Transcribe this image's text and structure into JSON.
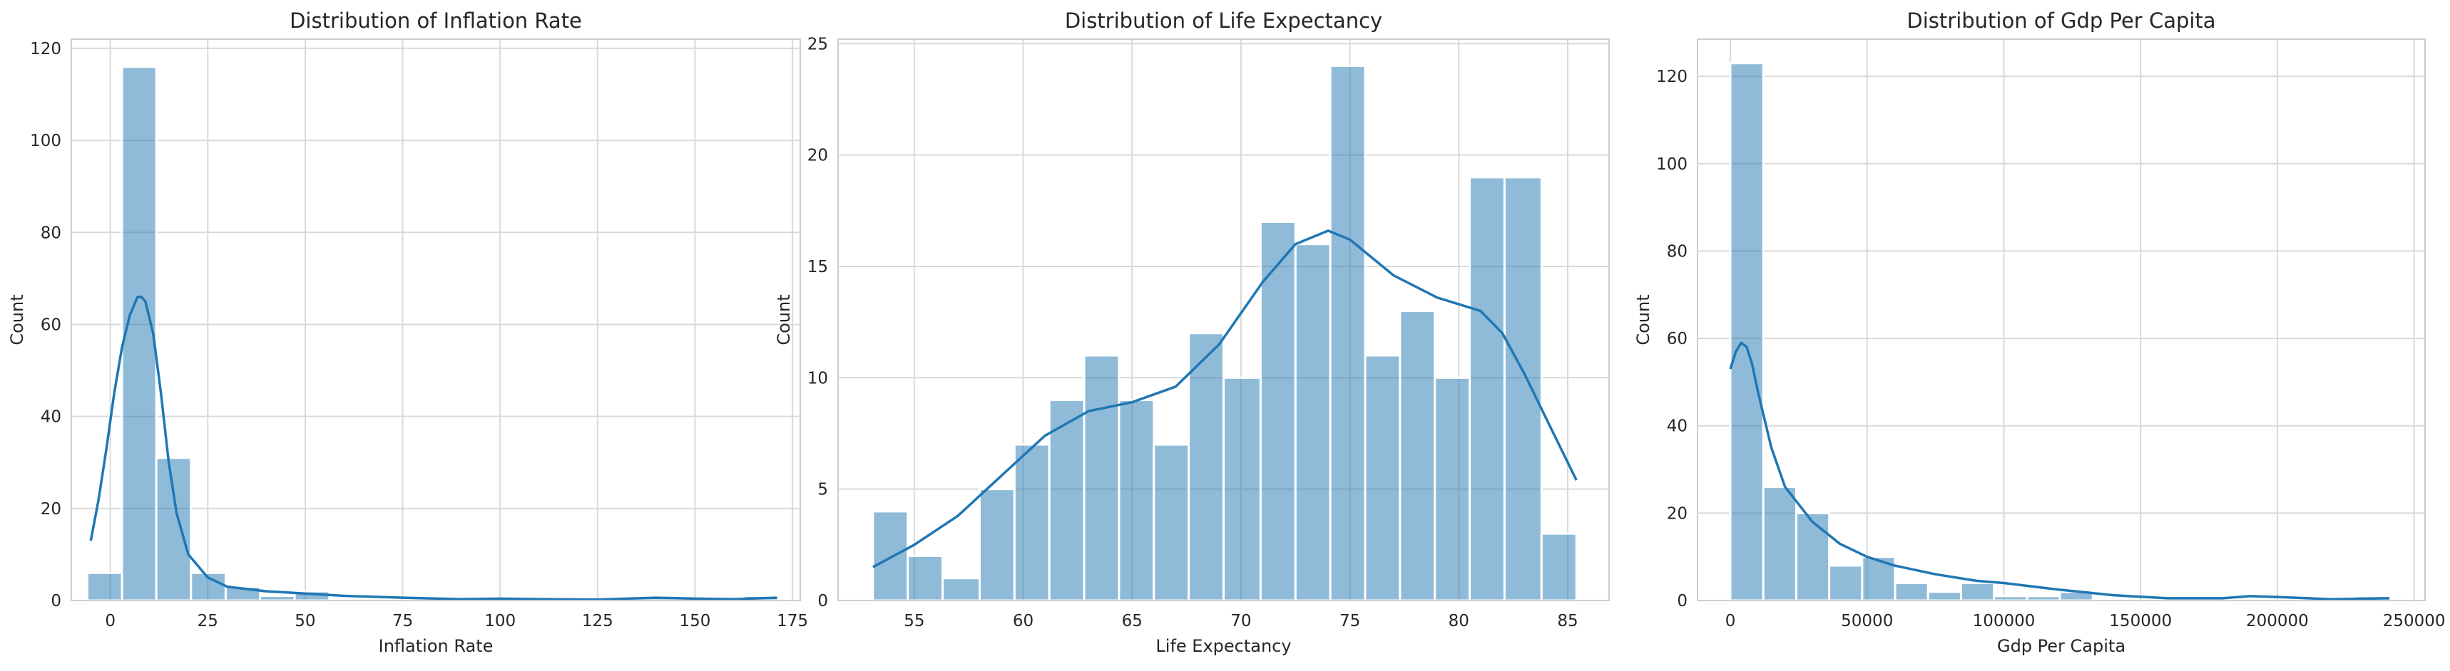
{
  "chart_data": [
    {
      "type": "bar",
      "title": "Distribution of Inflation Rate",
      "xlabel": "Inflation Rate",
      "ylabel": "Count",
      "xlim": [
        -10,
        177
      ],
      "ylim": [
        0,
        122
      ],
      "xticks": [
        0,
        25,
        50,
        75,
        100,
        125,
        150,
        175
      ],
      "yticks": [
        0,
        20,
        40,
        60,
        80,
        100,
        120
      ],
      "bin_edges": [
        -5.9,
        3.0,
        11.8,
        20.7,
        29.6,
        38.4,
        47.3,
        56.2,
        65.0,
        73.9,
        82.7,
        91.6,
        100.5,
        109.3,
        118.2,
        127.1,
        135.9,
        144.8,
        153.7,
        162.5,
        171.4
      ],
      "counts": [
        6,
        116,
        31,
        6,
        3,
        1,
        2,
        0,
        0,
        0,
        0,
        0,
        0,
        0,
        0,
        0,
        1,
        0,
        0,
        1
      ],
      "kde": {
        "x": [
          -5,
          -3,
          -1,
          1,
          3,
          5,
          7,
          8,
          9,
          11,
          13,
          15,
          17,
          20,
          25,
          30,
          40,
          50,
          60,
          75,
          90,
          100,
          110,
          125,
          140,
          150,
          160,
          171
        ],
        "y": [
          13,
          22,
          33,
          45,
          55,
          62,
          66,
          66,
          65,
          58,
          45,
          30,
          19,
          10,
          5,
          3,
          2,
          1.5,
          1,
          0.6,
          0.3,
          0.4,
          0.3,
          0.2,
          0.6,
          0.4,
          0.3,
          0.6
        ]
      },
      "grid": true
    },
    {
      "type": "bar",
      "title": "Distribution of Life Expectancy",
      "xlabel": "Life Expectancy",
      "ylabel": "Count",
      "xlim": [
        51.5,
        86.9
      ],
      "ylim": [
        0,
        25.2
      ],
      "xticks": [
        55,
        60,
        65,
        70,
        75,
        80,
        85
      ],
      "yticks": [
        0,
        5,
        10,
        15,
        20,
        25
      ],
      "bin_edges": [
        53.1,
        54.7,
        56.3,
        58.0,
        59.6,
        61.2,
        62.8,
        64.4,
        66.0,
        67.6,
        69.2,
        70.9,
        72.5,
        74.1,
        75.7,
        77.3,
        78.9,
        80.5,
        82.1,
        83.8,
        85.4
      ],
      "counts": [
        4,
        2,
        1,
        5,
        7,
        9,
        11,
        9,
        7,
        12,
        10,
        17,
        16,
        24,
        11,
        13,
        10,
        19,
        19,
        3
      ],
      "kde": {
        "x": [
          53.1,
          55,
          57,
          59,
          61,
          63,
          65,
          67,
          69,
          71,
          72.5,
          74,
          75,
          77,
          79,
          81,
          82,
          83,
          84,
          85.4
        ],
        "y": [
          1.5,
          2.5,
          3.8,
          5.6,
          7.4,
          8.5,
          8.9,
          9.6,
          11.5,
          14.3,
          16.0,
          16.6,
          16.2,
          14.6,
          13.6,
          13.0,
          12.0,
          10.2,
          8.2,
          5.4
        ]
      },
      "grid": true
    },
    {
      "type": "bar",
      "title": "Distribution of Gdp Per Capita",
      "xlabel": "Gdp Per Capita",
      "ylabel": "Count",
      "xlim": [
        -12000,
        254000
      ],
      "ylim": [
        0,
        128.5
      ],
      "xticks": [
        0,
        50000,
        100000,
        150000,
        200000,
        250000
      ],
      "yticks": [
        0,
        20,
        40,
        60,
        80,
        100,
        120
      ],
      "bin_edges": [
        0,
        12050,
        24100,
        36150,
        48200,
        60250,
        72300,
        84350,
        96400,
        108450,
        120500,
        132550,
        144600,
        156650,
        168700,
        180750,
        192800,
        204850,
        216900,
        228950,
        241000
      ],
      "counts": [
        123,
        26,
        20,
        8,
        10,
        4,
        2,
        4,
        1,
        1,
        2,
        0,
        0,
        0,
        0,
        0,
        0,
        0,
        0,
        1
      ],
      "kde": {
        "x": [
          0,
          2000,
          4000,
          6000,
          8000,
          10000,
          15000,
          20000,
          30000,
          40000,
          50000,
          60000,
          75000,
          90000,
          100000,
          120000,
          140000,
          160000,
          180000,
          190000,
          200000,
          220000,
          241000
        ],
        "y": [
          53,
          57,
          59,
          58,
          54,
          48,
          35,
          26,
          18,
          13,
          10,
          8,
          6,
          4.5,
          4,
          2.5,
          1.2,
          0.5,
          0.5,
          1,
          0.8,
          0.3,
          0.5
        ]
      },
      "grid": true
    }
  ]
}
